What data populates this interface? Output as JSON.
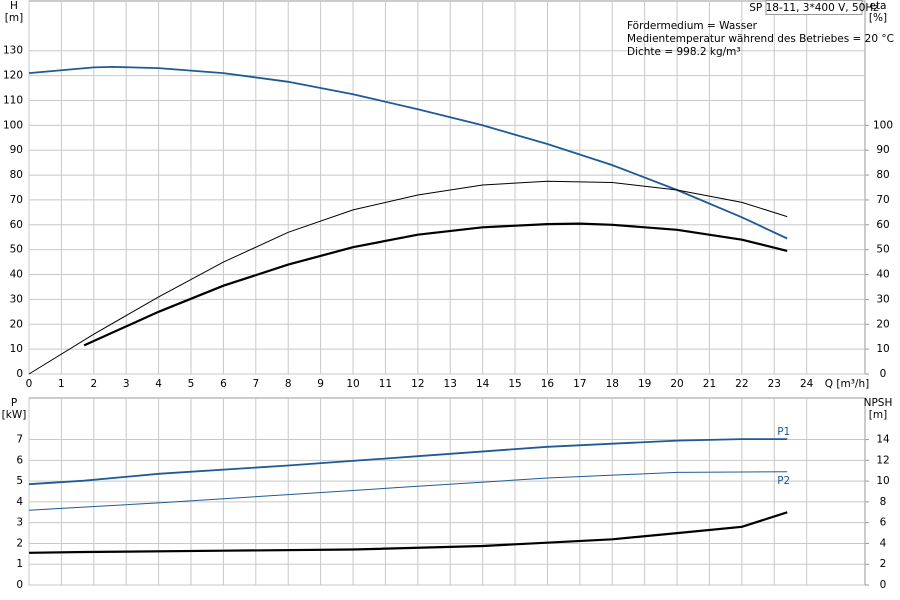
{
  "chart_data": [
    {
      "type": "line",
      "title": "SP 18-11, 3*400 V, 50Hz",
      "annotations": [
        "Fördermedium = Wasser",
        "Medientemperatur während des Betriebes = 20 °C",
        "Dichte = 998.2 kg/m³"
      ],
      "xlabel": "Q [m³/h]",
      "ylabel": [
        "H",
        "[m]"
      ],
      "y2label": [
        "eta",
        "[%]"
      ],
      "xlim": [
        0,
        25.8
      ],
      "xticks": [
        0,
        1,
        2,
        3,
        4,
        5,
        6,
        7,
        8,
        9,
        10,
        11,
        12,
        13,
        14,
        15,
        16,
        17,
        18,
        19,
        20,
        21,
        22,
        23,
        24
      ],
      "show_xtick_labels": true,
      "ylim": [
        0,
        150
      ],
      "yticks": [
        0,
        10,
        20,
        30,
        40,
        50,
        60,
        70,
        80,
        90,
        100,
        110,
        120,
        130
      ],
      "y2lim": [
        0,
        150
      ],
      "y2ticks": [
        0,
        10,
        20,
        30,
        40,
        50,
        60,
        70,
        80,
        90,
        100
      ],
      "grid": true,
      "series": [
        {
          "color": "#1f5a96",
          "line_width": 1.8,
          "x": [
            0,
            2,
            2.6,
            4,
            6,
            8,
            10,
            12,
            14,
            16,
            18,
            20,
            22,
            23.4
          ],
          "values": [
            121,
            123.3,
            123.5,
            123,
            121,
            117.5,
            112.5,
            106.5,
            100,
            92.5,
            84,
            74,
            63,
            54.5
          ]
        },
        {
          "color": "#000000",
          "line_width": 1,
          "axis": "y2",
          "x": [
            0,
            2,
            4,
            6,
            8,
            10,
            12,
            14,
            16,
            18,
            20,
            22,
            23.4
          ],
          "values": [
            0,
            16,
            31,
            45,
            57,
            66,
            72,
            76,
            77.5,
            77,
            74,
            69,
            63.3
          ]
        },
        {
          "color": "#000000",
          "line_width": 2.2,
          "axis": "y2",
          "x": [
            1.7,
            4,
            6,
            8,
            10,
            12,
            14,
            16,
            17,
            18,
            20,
            22,
            23.4
          ],
          "values": [
            11.5,
            25,
            35.5,
            44,
            51,
            56,
            59,
            60.3,
            60.5,
            60,
            58,
            54,
            49.5
          ]
        }
      ]
    },
    {
      "type": "line",
      "ylabel": [
        "P",
        "[kW]"
      ],
      "y2label": [
        "NPSH",
        "[m]"
      ],
      "xlim": [
        0,
        25.8
      ],
      "xticks": [
        0,
        1,
        2,
        3,
        4,
        5,
        6,
        7,
        8,
        9,
        10,
        11,
        12,
        13,
        14,
        15,
        16,
        17,
        18,
        19,
        20,
        21,
        22,
        23,
        24
      ],
      "show_xtick_labels": false,
      "ylim": [
        0,
        9
      ],
      "yticks": [
        0,
        1,
        2,
        3,
        4,
        5,
        6,
        7
      ],
      "y2lim": [
        0,
        18
      ],
      "y2ticks": [
        0,
        2,
        4,
        6,
        8,
        10,
        12,
        14
      ],
      "grid": true,
      "series": [
        {
          "name": "P1",
          "label_side": "above",
          "color": "#1f5a96",
          "line_width": 1.8,
          "x": [
            0,
            1.7,
            4,
            8,
            12,
            16,
            20,
            22,
            23.4
          ],
          "values": [
            4.85,
            5.02,
            5.35,
            5.75,
            6.2,
            6.65,
            6.95,
            7.02,
            7.02
          ]
        },
        {
          "name": "P2",
          "label_side": "below",
          "color": "#1f5a96",
          "line_width": 1,
          "x": [
            0,
            4,
            8,
            12,
            16,
            20,
            23.4
          ],
          "values": [
            3.6,
            3.95,
            4.35,
            4.75,
            5.15,
            5.42,
            5.45
          ]
        },
        {
          "color": "#000000",
          "line_width": 2.2,
          "axis": "y2",
          "x": [
            0,
            1.7,
            6,
            10,
            14,
            18,
            20,
            22,
            23.4
          ],
          "values": [
            3.1,
            3.18,
            3.3,
            3.42,
            3.75,
            4.4,
            5.0,
            5.6,
            7.0
          ]
        }
      ]
    }
  ]
}
